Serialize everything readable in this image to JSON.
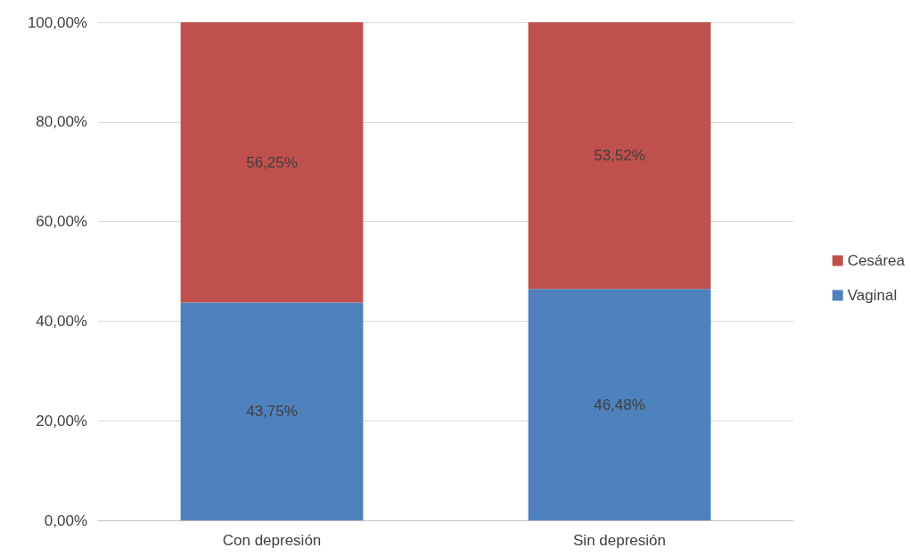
{
  "chart_data": {
    "type": "bar",
    "stacked": true,
    "categories": [
      "Con depresión",
      "Sin depresión"
    ],
    "series": [
      {
        "name": "Vaginal",
        "color": "#4f81bd",
        "values": [
          43.75,
          46.48
        ],
        "value_labels": [
          "43,75%",
          "46,48%"
        ]
      },
      {
        "name": "Cesárea",
        "color": "#c0504d",
        "values": [
          56.25,
          53.52
        ],
        "value_labels": [
          "56,25%",
          "53,52%"
        ]
      }
    ],
    "ylim": [
      0,
      100
    ],
    "yticks": [
      {
        "value": 0,
        "label": "0,00%"
      },
      {
        "value": 20,
        "label": "20,00%"
      },
      {
        "value": 40,
        "label": "40,00%"
      },
      {
        "value": 60,
        "label": "60,00%"
      },
      {
        "value": 80,
        "label": "80,00%"
      },
      {
        "value": 100,
        "label": "100,00%"
      }
    ],
    "grid": "y",
    "legend": "right"
  }
}
